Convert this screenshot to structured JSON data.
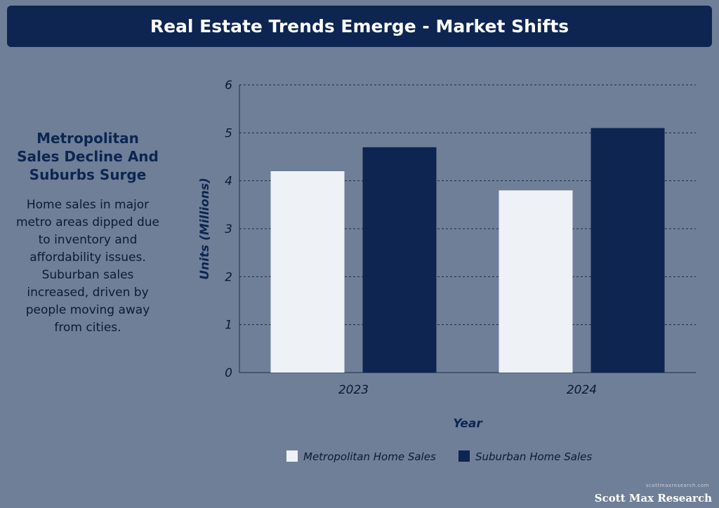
{
  "header": {
    "title": "Real Estate Trends Emerge - Market Shifts"
  },
  "sidebar": {
    "heading": "Metropolitan Sales Decline And Suburbs Surge",
    "body": "Home sales in major metro areas dipped due to inventory and affordability issues. Suburban sales increased, driven by people moving away from cities."
  },
  "chart_data": {
    "type": "bar",
    "categories": [
      "2023",
      "2024"
    ],
    "series": [
      {
        "name": "Metropolitan Home Sales",
        "values": [
          4.2,
          3.8
        ],
        "color": "#eef2f7"
      },
      {
        "name": "Suburban Home Sales",
        "values": [
          4.7,
          5.1
        ],
        "color": "#0d2550"
      }
    ],
    "xlabel": "Year",
    "ylabel": "Units (Millions)",
    "ylim": [
      0,
      6
    ],
    "yticks": [
      0,
      1,
      2,
      3,
      4,
      5,
      6
    ],
    "grid": true,
    "legend": "bottom"
  },
  "footer": {
    "watermark_small": "scottmaxresearch.com",
    "watermark": "Scott Max Research"
  }
}
